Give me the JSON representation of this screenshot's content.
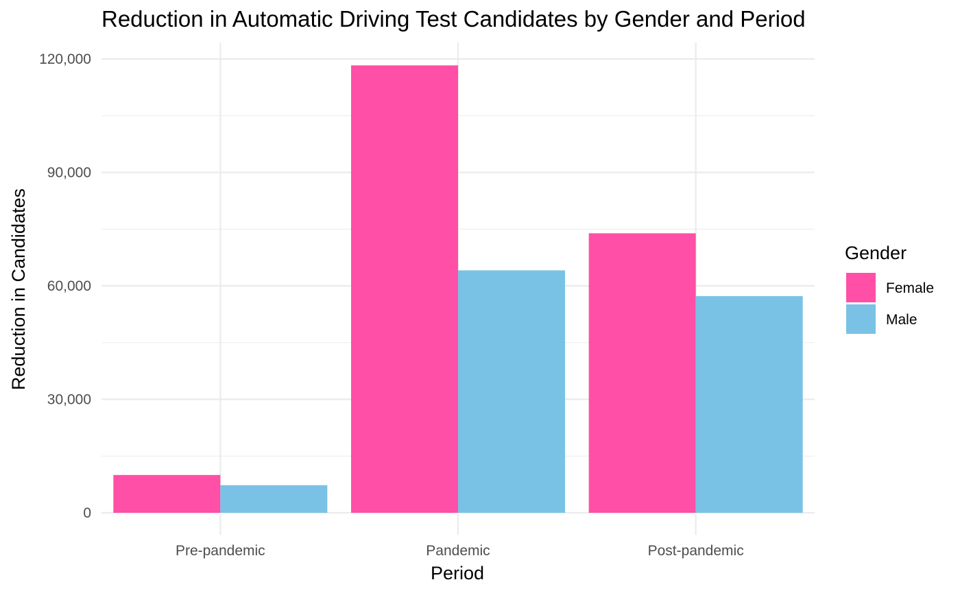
{
  "chart_data": {
    "type": "bar",
    "title": "Reduction in Automatic Driving Test Candidates by Gender and Period",
    "xlabel": "Period",
    "ylabel": "Reduction in Candidates",
    "categories": [
      "Pre-pandemic",
      "Pandemic",
      "Post-pandemic"
    ],
    "series": [
      {
        "name": "Female",
        "color": "#FF4FA7",
        "values": [
          10000,
          118300,
          73900
        ]
      },
      {
        "name": "Male",
        "color": "#79C2E5",
        "values": [
          7300,
          64100,
          57300
        ]
      }
    ],
    "ylim": [
      0,
      120000
    ],
    "yticks": [
      0,
      30000,
      60000,
      90000,
      120000
    ],
    "ytick_labels": [
      "0",
      "30,000",
      "60,000",
      "90,000",
      "120,000"
    ],
    "grid": true,
    "legend": {
      "title": "Gender",
      "position": "right"
    }
  }
}
